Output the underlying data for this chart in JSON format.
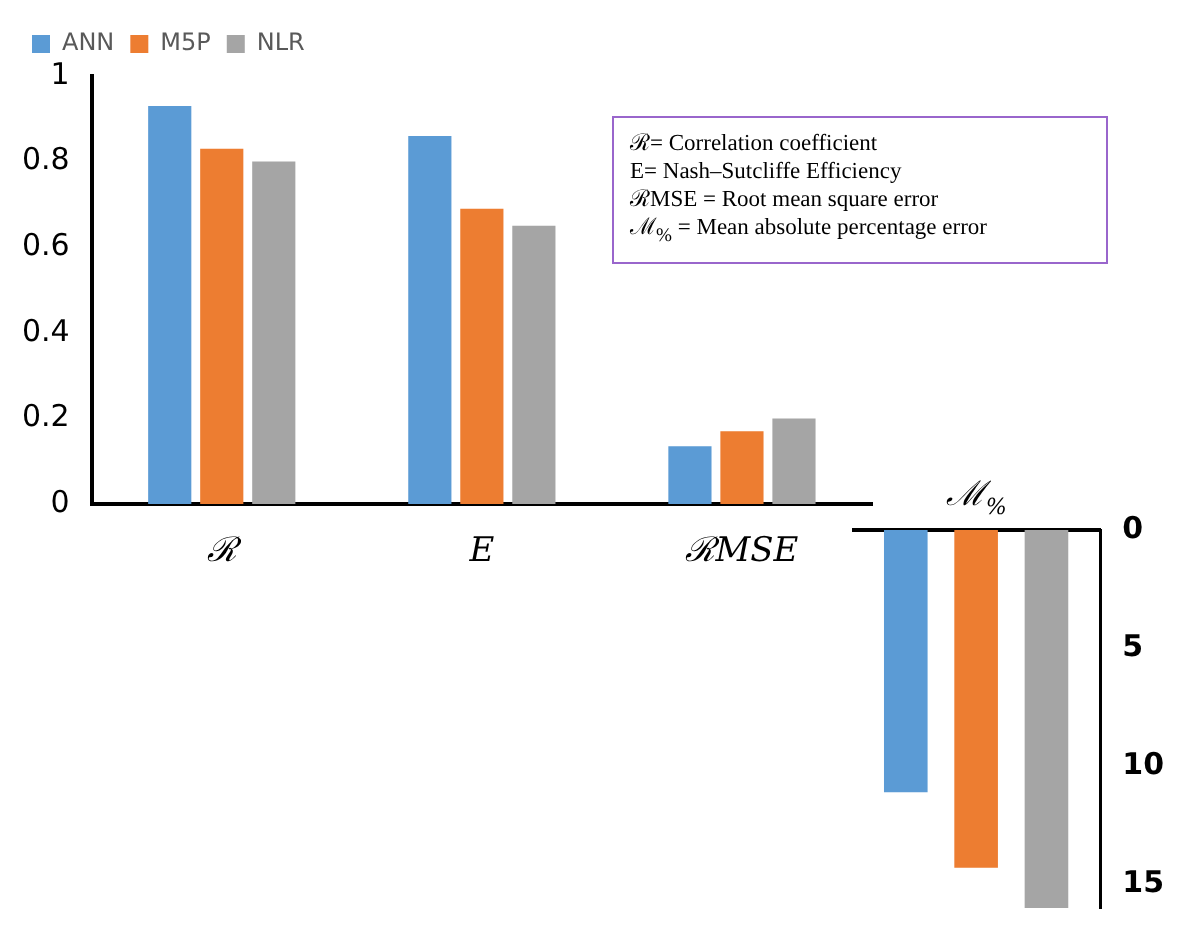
{
  "chart_data": [
    {
      "type": "bar",
      "categories": [
        "ℛ",
        "E",
        "ℛMSE"
      ],
      "series": [
        {
          "name": "ANN",
          "color": "#5b9bd5",
          "values": [
            0.93,
            0.86,
            0.135
          ]
        },
        {
          "name": "M5P",
          "color": "#ed7d31",
          "values": [
            0.83,
            0.69,
            0.17
          ]
        },
        {
          "name": "NLR",
          "color": "#a5a5a5",
          "values": [
            0.8,
            0.65,
            0.2
          ]
        }
      ],
      "ylim": [
        0,
        1
      ],
      "yticks": [
        0,
        0.2,
        0.4,
        0.6,
        0.8,
        1
      ],
      "legend": "top",
      "annotations": [
        "ℛ= Correlation coefficient",
        "E= Nash–Sutcliffe Efficiency",
        "ℛMSE = Root mean square error",
        "ℳ$_{%}$ = Mean absolute percentage error"
      ]
    },
    {
      "type": "bar",
      "categories": [
        "ℳ$_{%}$"
      ],
      "series": [
        {
          "color": "#5b9bd5",
          "values": [
            11.1
          ]
        },
        {
          "color": "#ed7d31",
          "values": [
            14.3
          ]
        },
        {
          "color": "#a5a5a5",
          "values": [
            16
          ]
        }
      ],
      "ylim": [
        16,
        0
      ],
      "yticks": [
        0,
        5,
        10,
        15
      ]
    }
  ]
}
